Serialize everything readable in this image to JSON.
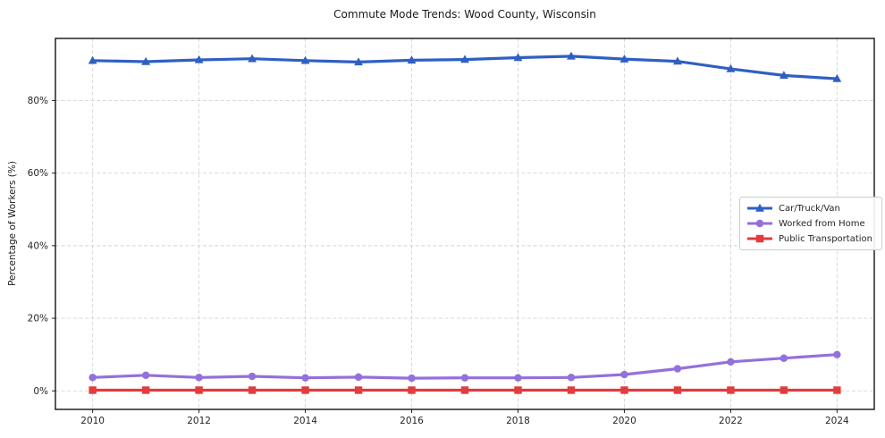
{
  "chart_data": {
    "type": "line",
    "title": "Commute Mode Trends: Wood County, Wisconsin",
    "xlabel": "",
    "ylabel": "Percentage of Workers (%)",
    "x": [
      2010,
      2011,
      2012,
      2013,
      2014,
      2015,
      2016,
      2017,
      2018,
      2019,
      2020,
      2021,
      2022,
      2023,
      2024
    ],
    "series": [
      {
        "name": "Car/Truck/Van",
        "color": "#2f5fc4",
        "marker": "triangle",
        "values": [
          91.0,
          90.7,
          91.2,
          91.5,
          91.0,
          90.6,
          91.1,
          91.3,
          91.8,
          92.2,
          91.4,
          90.8,
          88.7,
          86.9,
          86.0
        ]
      },
      {
        "name": "Worked from Home",
        "color": "#9370db",
        "marker": "circle",
        "values": [
          3.7,
          4.3,
          3.7,
          4.0,
          3.6,
          3.8,
          3.5,
          3.6,
          3.6,
          3.7,
          4.5,
          6.1,
          8.0,
          9.0,
          10.0
        ]
      },
      {
        "name": "Public Transportation",
        "color": "#e23c3c",
        "marker": "square",
        "values": [
          0.2,
          0.2,
          0.2,
          0.2,
          0.2,
          0.2,
          0.2,
          0.2,
          0.2,
          0.2,
          0.2,
          0.2,
          0.2,
          0.2,
          0.2
        ]
      }
    ],
    "x_tick_values": [
      2010,
      2012,
      2014,
      2016,
      2018,
      2020,
      2022,
      2024
    ],
    "x_tick_labels": [
      "2010",
      "2012",
      "2014",
      "2016",
      "2018",
      "2020",
      "2022",
      "2024"
    ],
    "y_tick_values": [
      0,
      20,
      40,
      60,
      80
    ],
    "y_tick_labels": [
      "0%",
      "20%",
      "40%",
      "60%",
      "80%"
    ],
    "xlim": [
      2009.3,
      2024.7
    ],
    "ylim": [
      -5.1,
      97.1
    ],
    "grid": true,
    "legend_position": "center-right"
  }
}
